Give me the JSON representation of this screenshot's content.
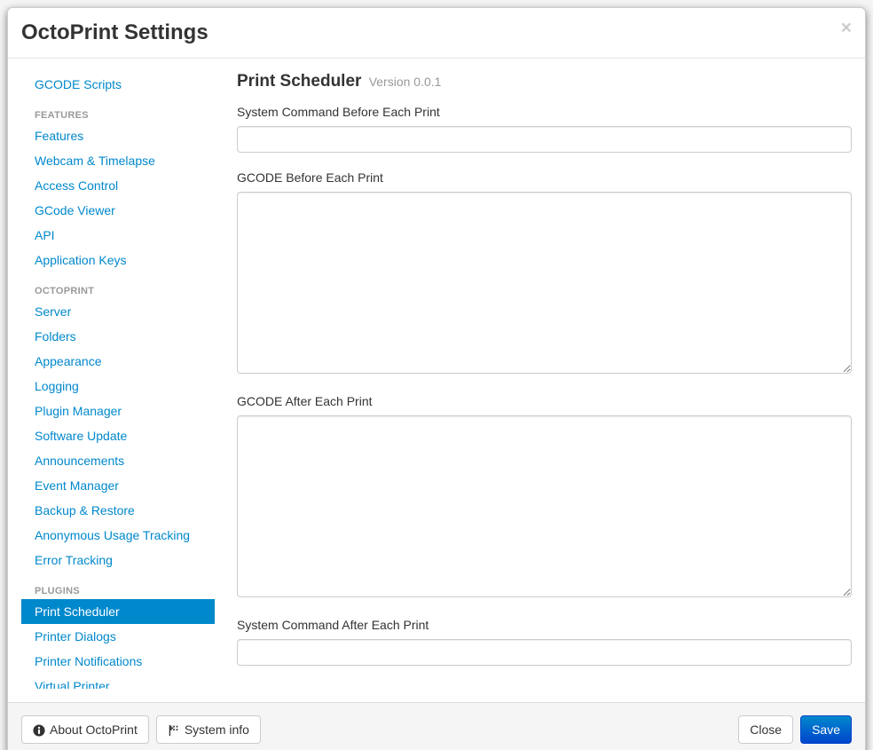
{
  "modal": {
    "title": "OctoPrint Settings"
  },
  "sidebar": {
    "top_item": "GCODE Scripts",
    "sections": [
      {
        "header": "FEATURES",
        "items": [
          "Features",
          "Webcam & Timelapse",
          "Access Control",
          "GCode Viewer",
          "API",
          "Application Keys"
        ]
      },
      {
        "header": "OCTOPRINT",
        "items": [
          "Server",
          "Folders",
          "Appearance",
          "Logging",
          "Plugin Manager",
          "Software Update",
          "Announcements",
          "Event Manager",
          "Backup & Restore",
          "Anonymous Usage Tracking",
          "Error Tracking"
        ]
      },
      {
        "header": "PLUGINS",
        "items": [
          "Print Scheduler",
          "Printer Dialogs",
          "Printer Notifications",
          "Virtual Printer"
        ]
      }
    ],
    "active_item": "Print Scheduler"
  },
  "content": {
    "title": "Print Scheduler",
    "version": "Version 0.0.1",
    "fields": {
      "sys_before": {
        "label": "System Command Before Each Print",
        "value": ""
      },
      "gcode_before": {
        "label": "GCODE Before Each Print",
        "value": ""
      },
      "gcode_after": {
        "label": "GCODE After Each Print",
        "value": ""
      },
      "sys_after": {
        "label": "System Command After Each Print",
        "value": ""
      }
    }
  },
  "footer": {
    "about": "About OctoPrint",
    "sysinfo": "System info",
    "close": "Close",
    "save": "Save"
  },
  "colors": {
    "link": "#0088cc",
    "primary": "#006dcc",
    "text": "#333333",
    "muted": "#999999",
    "border": "#cccccc"
  }
}
